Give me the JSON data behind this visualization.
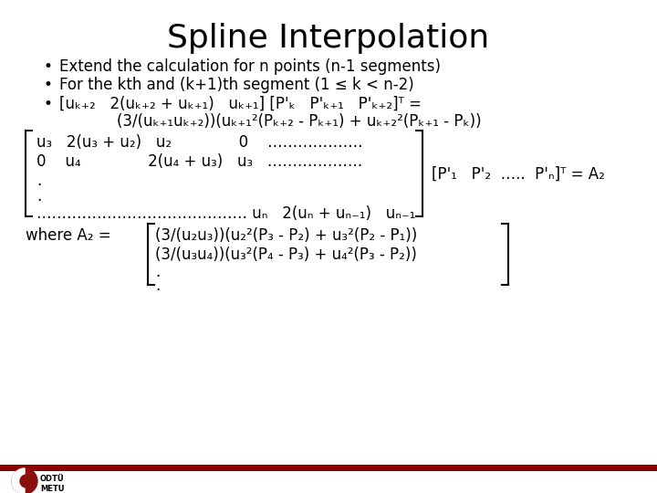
{
  "title": "Spline Interpolation",
  "title_fontsize": 26,
  "body_fontsize": 12,
  "bg_color": "#ffffff",
  "text_color": "#000000",
  "bar_color": "#8B0000",
  "bullet1": "Extend the calculation for n points (n-1 segments)",
  "bullet2": "For the kth and (k+1)th segment (1 ≤ k < n-2)",
  "bullet3a": "[uₖ₊₂   2(uₖ₊₂ + uₖ₊₁)   uₖ₊₁] [P'ₖ   P'ₖ₊₁   P'ₖ₊₂]ᵀ =",
  "bullet3b": "            (3/(uₖ₊₁uₖ₊₂))(uₖ₊₁²(Pₖ₊₂ - Pₖ₊₁) + uₖ₊₂²(Pₖ₊₁ - Pₖ))",
  "matrix_line1": "u₃   2(u₃ + u₂)   u₂              0    ……………….",
  "matrix_line2": "0    u₄              2(u₄ + u₃)   u₃   ……………….",
  "matrix_dot1": ".",
  "matrix_dot2": ".",
  "matrix_line5": "…………………………………… uₙ   2(uₙ + uₙ₋₁)   uₙ₋₁",
  "rhs_text": "[P'₁   P'₂  …..  P'ₙ]ᵀ = A₂",
  "where_label": "where A₂ =",
  "where_eq1": "(3/(u₂u₃))(u₂²(P₃ - P₂) + u₃²(P₂ - P₁))",
  "where_eq2": "(3/(u₃u₄))(u₃²(P₄ - P₃) + u₄²(P₃ - P₂))",
  "where_dot1": ".",
  "where_dot2": "."
}
